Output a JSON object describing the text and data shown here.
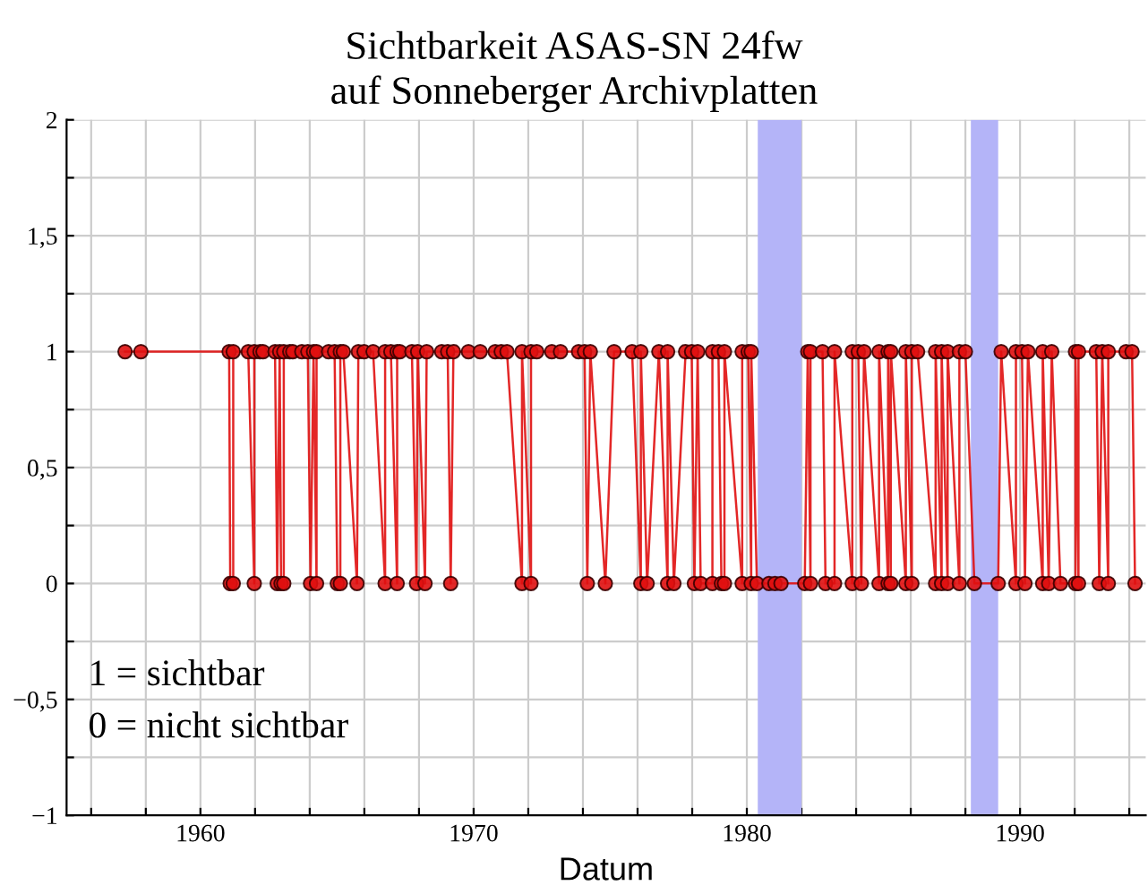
{
  "chart_data": {
    "type": "line",
    "title": "Sichtbarkeit ASAS-SN 24fw",
    "subtitle": "auf Sonneberger Archivplatten",
    "xlabel": "Datum",
    "annotations": [
      "1 = sichtbar",
      "0 = nicht sichtbar"
    ],
    "marker": "circle",
    "line_style": "solid",
    "grid": true,
    "xlim": [
      1955.1,
      1994.6
    ],
    "xticks": [
      {
        "value": 1956,
        "label": null
      },
      {
        "value": 1958,
        "label": null
      },
      {
        "value": 1960,
        "label": "1960"
      },
      {
        "value": 1962,
        "label": null
      },
      {
        "value": 1964,
        "label": null
      },
      {
        "value": 1966,
        "label": null
      },
      {
        "value": 1968,
        "label": null
      },
      {
        "value": 1970,
        "label": "1970"
      },
      {
        "value": 1972,
        "label": null
      },
      {
        "value": 1974,
        "label": null
      },
      {
        "value": 1976,
        "label": null
      },
      {
        "value": 1978,
        "label": null
      },
      {
        "value": 1980,
        "label": "1980"
      },
      {
        "value": 1982,
        "label": null
      },
      {
        "value": 1984,
        "label": null
      },
      {
        "value": 1986,
        "label": null
      },
      {
        "value": 1988,
        "label": null
      },
      {
        "value": 1990,
        "label": "1990"
      },
      {
        "value": 1992,
        "label": null
      },
      {
        "value": 1994,
        "label": null
      }
    ],
    "ylim": [
      -1,
      2
    ],
    "yticks": [
      {
        "value": -1,
        "label": "−1"
      },
      {
        "value": -0.75,
        "label": null
      },
      {
        "value": -0.5,
        "label": "−0,5"
      },
      {
        "value": -0.25,
        "label": null
      },
      {
        "value": 0,
        "label": "0"
      },
      {
        "value": 0.25,
        "label": null
      },
      {
        "value": 0.5,
        "label": "0,5"
      },
      {
        "value": 0.75,
        "label": null
      },
      {
        "value": 1,
        "label": "1"
      },
      {
        "value": 1.25,
        "label": null
      },
      {
        "value": 1.5,
        "label": "1,5"
      },
      {
        "value": 1.75,
        "label": null
      },
      {
        "value": 2,
        "label": "2"
      }
    ],
    "bands": [
      {
        "axis": "x",
        "from": 1980.4,
        "to": 1982.0,
        "color": "#b4b4f8"
      },
      {
        "axis": "x",
        "from": 1988.2,
        "to": 1989.2,
        "color": "#b4b4f8"
      }
    ],
    "series": [
      {
        "color": "#e01010",
        "x": [
          1957.24,
          1957.82,
          1961.05,
          1961.09,
          1961.2,
          1961.2,
          1961.75,
          1961.97,
          1961.97,
          1962.18,
          1962.29,
          1962.73,
          1962.81,
          1962.9,
          1962.95,
          1963.05,
          1963.05,
          1963.27,
          1963.38,
          1963.71,
          1963.93,
          1964.03,
          1964.14,
          1964.25,
          1964.25,
          1964.69,
          1964.91,
          1965.01,
          1965.12,
          1965.12,
          1965.23,
          1965.73,
          1965.78,
          1965.99,
          1966.32,
          1966.76,
          1966.76,
          1966.97,
          1967.2,
          1967.2,
          1967.3,
          1967.74,
          1967.91,
          1967.95,
          1968.22,
          1968.28,
          1968.83,
          1969.05,
          1969.16,
          1969.26,
          1969.81,
          1970.24,
          1970.79,
          1971.01,
          1971.22,
          1971.77,
          1971.77,
          1972.1,
          1972.1,
          1972.31,
          1972.86,
          1973.18,
          1973.84,
          1974.06,
          1974.16,
          1974.27,
          1974.82,
          1975.14,
          1975.8,
          1976.12,
          1976.12,
          1976.35,
          1976.78,
          1977.1,
          1977.1,
          1977.33,
          1977.76,
          1977.98,
          1978.08,
          1978.2,
          1978.31,
          1978.74,
          1978.74,
          1978.96,
          1979.07,
          1979.18,
          1979.18,
          1979.83,
          1979.83,
          1980.05,
          1980.16,
          1980.16,
          1980.37,
          1980.81,
          1981.03,
          1981.25,
          1982.12,
          1982.23,
          1982.33,
          1982.33,
          1982.77,
          1982.88,
          1983.21,
          1983.21,
          1983.86,
          1983.86,
          1984.08,
          1984.19,
          1984.29,
          1984.84,
          1984.84,
          1985.17,
          1985.17,
          1985.27,
          1985.27,
          1985.82,
          1985.82,
          1986.04,
          1986.04,
          1986.25,
          1986.91,
          1986.91,
          1987.13,
          1987.13,
          1987.35,
          1987.35,
          1987.78,
          1987.78,
          1988.0,
          1988.33,
          1989.2,
          1989.31,
          1989.85,
          1989.85,
          1990.07,
          1990.18,
          1990.29,
          1990.83,
          1990.83,
          1991.05,
          1991.16,
          1991.48,
          1992.03,
          1992.03,
          1992.14,
          1992.14,
          1992.79,
          1992.9,
          1993.01,
          1993.23,
          1993.23,
          1993.88,
          1994.1,
          1994.21
        ],
        "values": [
          1,
          1,
          1,
          0,
          0,
          1,
          1,
          0,
          1,
          1,
          1,
          1,
          0,
          1,
          0,
          0,
          1,
          1,
          1,
          1,
          1,
          0,
          1,
          0,
          1,
          1,
          1,
          0,
          0,
          1,
          1,
          0,
          1,
          1,
          1,
          0,
          1,
          1,
          0,
          1,
          1,
          1,
          0,
          1,
          0,
          1,
          1,
          1,
          0,
          1,
          1,
          1,
          1,
          1,
          1,
          0,
          1,
          0,
          1,
          1,
          1,
          1,
          1,
          1,
          0,
          1,
          0,
          1,
          1,
          0,
          1,
          0,
          1,
          0,
          1,
          0,
          1,
          1,
          0,
          1,
          0,
          0,
          1,
          1,
          0,
          0,
          1,
          0,
          1,
          1,
          0,
          1,
          0,
          0,
          0,
          0,
          0,
          1,
          0,
          1,
          1,
          0,
          0,
          1,
          0,
          1,
          1,
          0,
          1,
          0,
          1,
          0,
          1,
          0,
          1,
          0,
          1,
          0,
          1,
          1,
          0,
          1,
          0,
          1,
          0,
          1,
          0,
          1,
          1,
          0,
          0,
          1,
          0,
          1,
          1,
          0,
          1,
          0,
          1,
          0,
          1,
          0,
          0,
          1,
          0,
          1,
          1,
          0,
          1,
          0,
          1,
          1,
          1,
          0
        ]
      }
    ]
  }
}
